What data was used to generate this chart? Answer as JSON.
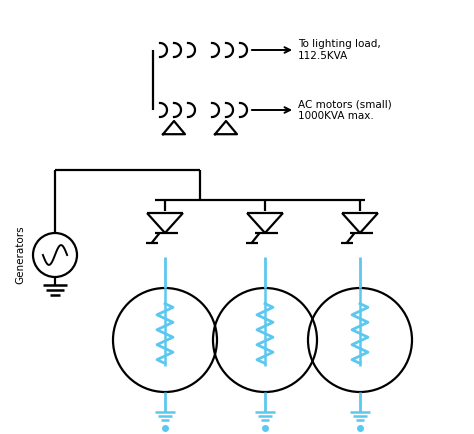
{
  "bg_color": "#ffffff",
  "line_color": "#000000",
  "blue_color": "#5bc8f0",
  "label_lighting": "To lighting load,\n112.5KVA",
  "label_motors": "AC motors (small)\n1000KVA max.",
  "label_generators": "Generators",
  "figw": 4.74,
  "figh": 4.34,
  "dpi": 100
}
